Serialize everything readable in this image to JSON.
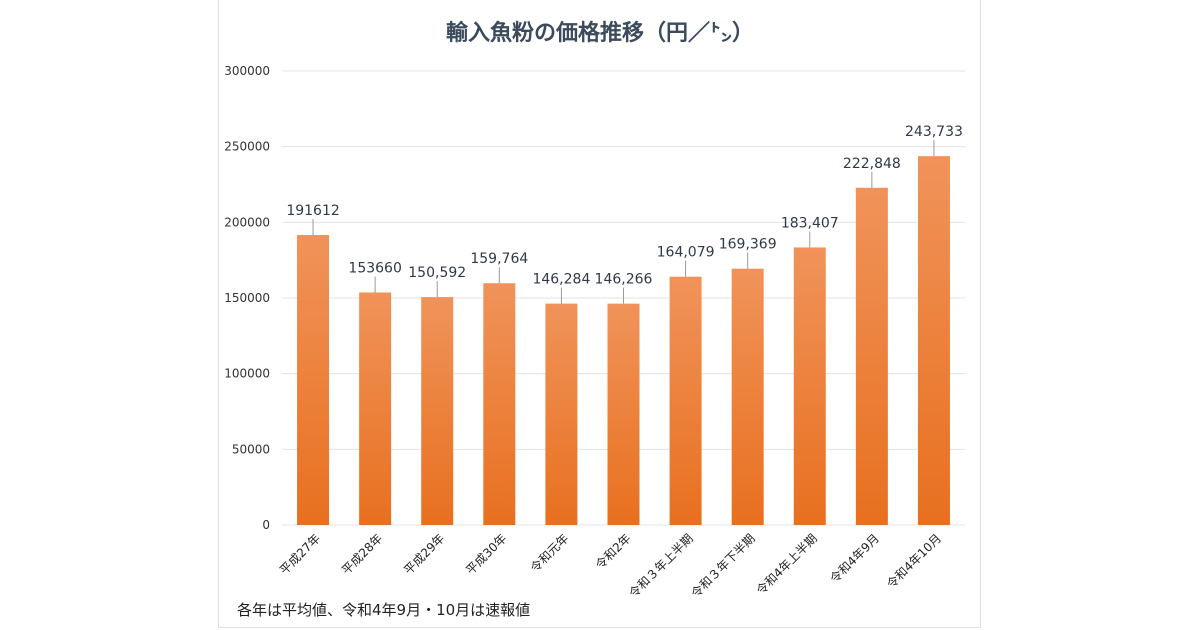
{
  "chart_data": {
    "type": "bar",
    "title": "輸入魚粉の価格推移（円／㌧）",
    "categories": [
      "平成27年",
      "平成28年",
      "平成29年",
      "平成30年",
      "令和元年",
      "令和2年",
      "令和３年上半期",
      "令和３年下半期",
      "令和4年上半期",
      "令和4年9月",
      "令和4年10月"
    ],
    "values": [
      191612,
      153660,
      150592,
      159764,
      146284,
      146266,
      164079,
      169369,
      183407,
      222848,
      243733
    ],
    "data_labels": [
      "191612",
      "153660",
      "150,592",
      "159,764",
      "146,284",
      "146,266",
      "164,079",
      "169,369",
      "183,407",
      "222,848",
      "243,733"
    ],
    "ylim": [
      0,
      300000
    ],
    "yticks": [
      0,
      50000,
      100000,
      150000,
      200000,
      250000,
      300000
    ],
    "ytick_labels": [
      "0",
      "50000",
      "100000",
      "150000",
      "200000",
      "250000",
      "300000"
    ],
    "grid": true,
    "colors": {
      "bar_top": "#f0935a",
      "bar_bottom": "#e8701f",
      "title": "#3b4a5c",
      "gridline": "#e3e3e3",
      "label": "#2e3a4a"
    }
  },
  "footnote": "各年は平均値、令和4年9月・10月は速報値"
}
